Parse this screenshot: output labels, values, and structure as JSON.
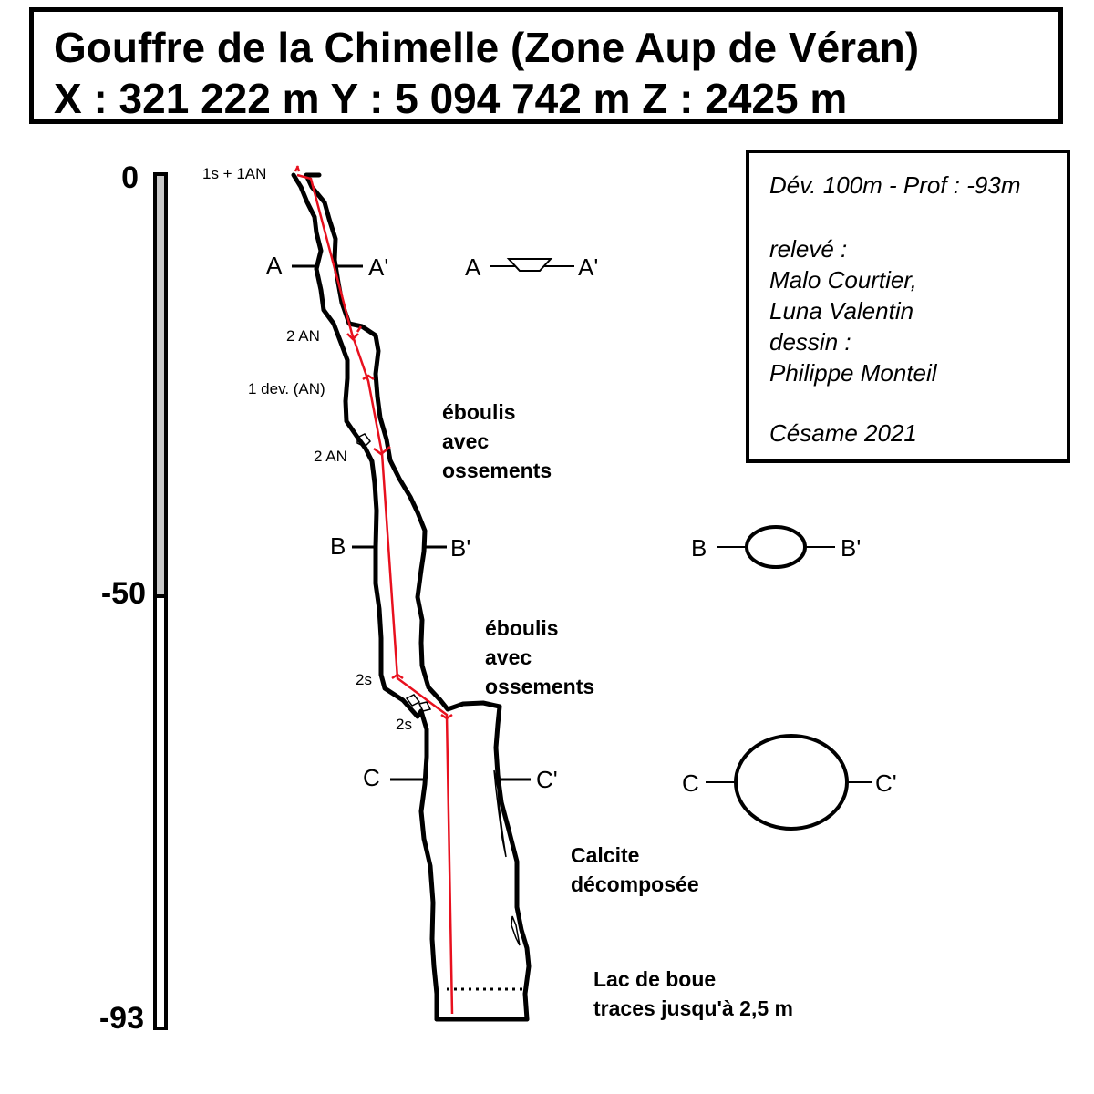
{
  "title": {
    "line1": "Gouffre de la Chimelle (Zone Aup de Véran)",
    "line2": "X : 321 222 m  Y : 5 094 742 m   Z : 2425 m"
  },
  "info": {
    "dev_prof": "Dév. 100m - Prof : -93m",
    "survey_label": "relevé :",
    "surveyor_1": "Malo Courtier,",
    "surveyor_2": "Luna Valentin",
    "drawing_label": "dessin :",
    "drawer": "Philippe Monteil",
    "club_year": "Césame 2021"
  },
  "scale": {
    "top": "0",
    "mid": "-50",
    "bottom": "-93"
  },
  "anchors": {
    "a0": "1s + 1AN",
    "a1": "2 AN",
    "a2": "1 dev. (AN)",
    "a3": "2 AN",
    "a4": "2s",
    "a5": "2s"
  },
  "sections": {
    "a": "A",
    "a_prime": "A'",
    "b": "B",
    "b_prime": "B'",
    "c": "C",
    "c_prime": "C'"
  },
  "notes": {
    "eboulis1_l1": "éboulis",
    "eboulis1_l2": "avec",
    "eboulis1_l3": "ossements",
    "eboulis2_l1": "éboulis",
    "eboulis2_l2": "avec",
    "eboulis2_l3": "ossements",
    "calcite_l1": "Calcite",
    "calcite_l2": "décomposée",
    "lac_l1": "Lac de boue",
    "lac_l2": "traces jusqu'à 2,5 m"
  },
  "colors": {
    "survey_line": "#e8101e",
    "outline": "#000000",
    "scale_fill": "#c8c8c8"
  }
}
